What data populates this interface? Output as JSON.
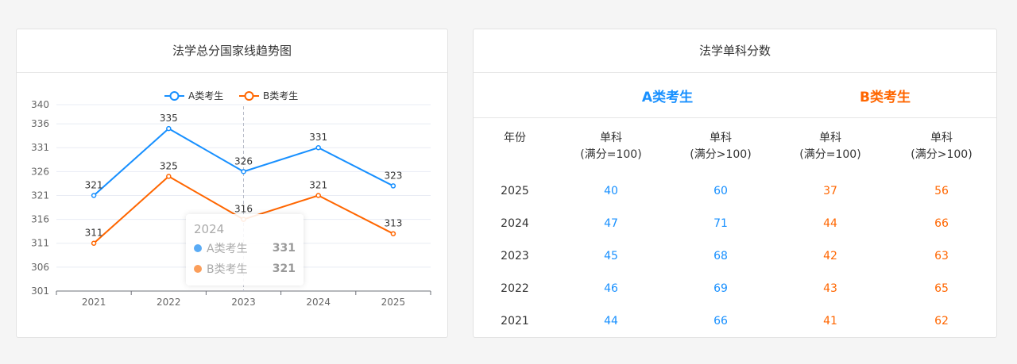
{
  "left_panel": {
    "title": "法学总分国家线趋势图"
  },
  "chart_data": {
    "type": "line",
    "title": "法学总分国家线趋势图",
    "categories": [
      "2021",
      "2022",
      "2023",
      "2024",
      "2025"
    ],
    "series": [
      {
        "name": "A类考生",
        "values": [
          321,
          335,
          326,
          331,
          323
        ],
        "color": "#1890ff"
      },
      {
        "name": "B类考生",
        "values": [
          311,
          325,
          316,
          321,
          313
        ],
        "color": "#ff6600"
      }
    ],
    "y_ticks": [
      301,
      306,
      311,
      316,
      321,
      326,
      331,
      336,
      340
    ],
    "ylim": [
      301,
      340
    ],
    "legend_position": "top-center",
    "grid": true,
    "tooltip": {
      "year": "2024",
      "rows": [
        {
          "name": "A类考生",
          "value": "331",
          "color": "#5aabf5"
        },
        {
          "name": "B类考生",
          "value": "321",
          "color": "#fb9e5a"
        }
      ]
    }
  },
  "right_panel": {
    "title": "法学单科分数",
    "group_a": "A类考生",
    "group_b": "B类考生",
    "headers": {
      "year": "年份",
      "a1_line1": "单科",
      "a1_line2": "(满分=100)",
      "a2_line1": "单科",
      "a2_line2": "(满分>100)",
      "b1_line1": "单科",
      "b1_line2": "(满分=100)",
      "b2_line1": "单科",
      "b2_line2": "(满分>100)"
    },
    "rows": [
      {
        "year": "2025",
        "a1": "40",
        "a2": "60",
        "b1": "37",
        "b2": "56"
      },
      {
        "year": "2024",
        "a1": "47",
        "a2": "71",
        "b1": "44",
        "b2": "66"
      },
      {
        "year": "2023",
        "a1": "45",
        "a2": "68",
        "b1": "42",
        "b2": "63"
      },
      {
        "year": "2022",
        "a1": "46",
        "a2": "69",
        "b1": "43",
        "b2": "65"
      },
      {
        "year": "2021",
        "a1": "44",
        "a2": "66",
        "b1": "41",
        "b2": "62"
      }
    ]
  }
}
